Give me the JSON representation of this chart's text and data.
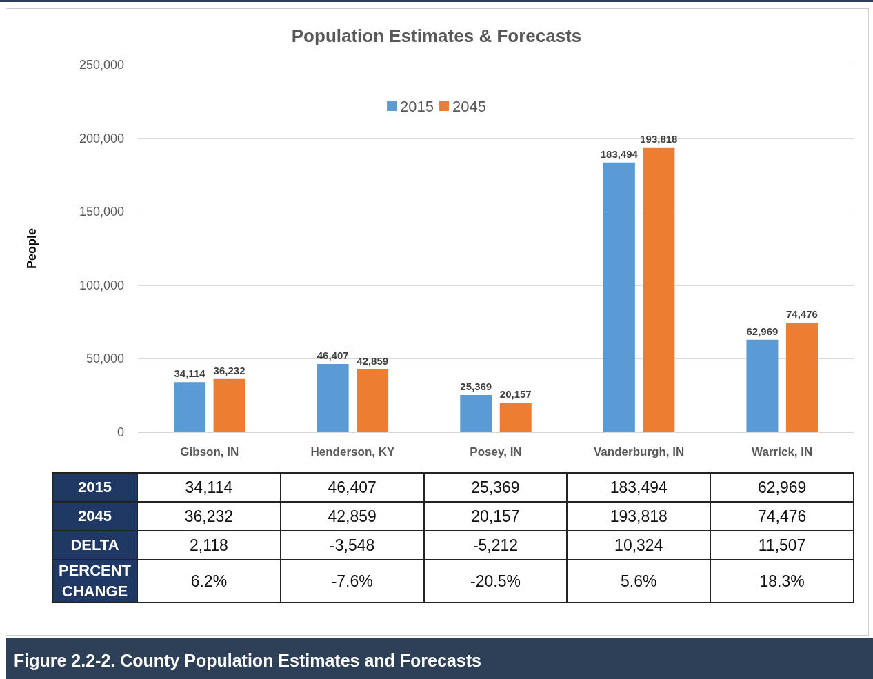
{
  "chart_data": {
    "type": "bar",
    "title": "Population Estimates & Forecasts",
    "ylabel": "People",
    "categories": [
      "Gibson, IN",
      "Henderson, KY",
      "Posey, IN",
      "Vanderburgh, IN",
      "Warrick, IN"
    ],
    "series": [
      {
        "name": "2015",
        "color": "#5b9bd5",
        "values": [
          34114,
          46407,
          25369,
          183494,
          62969
        ],
        "value_labels": [
          "34,114",
          "46,407",
          "25,369",
          "183,494",
          "62,969"
        ]
      },
      {
        "name": "2045",
        "color": "#ed7d31",
        "values": [
          36232,
          42859,
          20157,
          193818,
          74476
        ],
        "value_labels": [
          "36,232",
          "42,859",
          "20,157",
          "193,818",
          "74,476"
        ]
      }
    ],
    "ylim": [
      0,
      250000
    ],
    "yticks": [
      0,
      {
        "value": 50000,
        "label": "50,000"
      },
      {
        "value": 100000,
        "label": "100,000"
      },
      {
        "value": 150000,
        "label": "150,000"
      },
      {
        "value": 200000,
        "label": "200,000"
      },
      {
        "value": 250000,
        "label": "250,000"
      }
    ],
    "grid": "y",
    "legend": "top",
    "annotations": [
      "DELTA",
      "2,118",
      "-3,548",
      "-5,212",
      "10,324",
      "11,507",
      "PERCENT CHANGE",
      "6.2%",
      "-7.6%",
      "-20.5%",
      "5.6%",
      "18.3%",
      "Figure 2.2-2. County Population Estimates and Forecasts"
    ]
  }
}
